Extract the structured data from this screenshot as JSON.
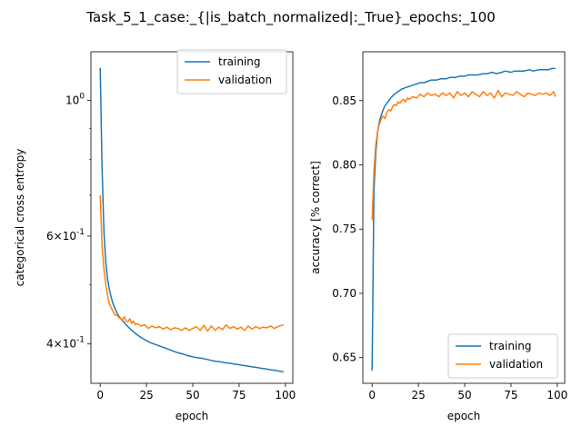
{
  "title": "Task_5_1_case:_{|is_batch_normalized|:_True}_epochs:_100",
  "colors": {
    "training": "#1f77b4",
    "validation": "#ff7f0e"
  },
  "chart_data": [
    {
      "type": "line",
      "xlabel": "epoch",
      "ylabel": "categorical cross entropy",
      "yscale": "log",
      "xlim": [
        -5,
        104
      ],
      "ylim": [
        0.345,
        1.2
      ],
      "x_ticks": [
        0,
        25,
        50,
        75,
        100
      ],
      "x_tick_labels": [
        "0",
        "25",
        "50",
        "75",
        "100"
      ],
      "y_ticks": [
        1.0,
        0.6,
        0.4
      ],
      "y_tick_labels": [
        "10^0",
        "6×10^-1",
        "4×10^-1"
      ],
      "y_minor_ticks": [
        0.5,
        0.7,
        0.8,
        0.9
      ],
      "legend": {
        "position": "upper right",
        "entries": [
          "training",
          "validation"
        ]
      },
      "series": [
        {
          "name": "training",
          "color": "#1f77b4",
          "x": [
            0,
            1,
            2,
            3,
            4,
            5,
            6,
            7,
            8,
            9,
            10,
            12,
            15,
            17,
            20,
            22,
            25,
            27,
            30,
            32,
            35,
            37,
            40,
            42,
            45,
            47,
            50,
            52,
            55,
            57,
            60,
            62,
            65,
            67,
            70,
            72,
            75,
            77,
            80,
            82,
            85,
            87,
            90,
            92,
            95,
            97,
            99
          ],
          "y": [
            1.13,
            0.78,
            0.61,
            0.545,
            0.51,
            0.49,
            0.476,
            0.465,
            0.457,
            0.45,
            0.444,
            0.437,
            0.427,
            0.421,
            0.414,
            0.41,
            0.405,
            0.402,
            0.399,
            0.397,
            0.394,
            0.392,
            0.389,
            0.387,
            0.385,
            0.383,
            0.381,
            0.38,
            0.379,
            0.378,
            0.376,
            0.375,
            0.374,
            0.373,
            0.372,
            0.371,
            0.37,
            0.369,
            0.368,
            0.367,
            0.366,
            0.365,
            0.364,
            0.363,
            0.362,
            0.361,
            0.36
          ]
        },
        {
          "name": "validation",
          "color": "#ff7f0e",
          "x": [
            0,
            1,
            2,
            3,
            4,
            5,
            6,
            7,
            8,
            9,
            10,
            11,
            12,
            13,
            14,
            15,
            16,
            17,
            18,
            19,
            20,
            22,
            24,
            26,
            28,
            30,
            32,
            34,
            36,
            38,
            40,
            42,
            44,
            46,
            48,
            50,
            52,
            54,
            56,
            58,
            60,
            62,
            64,
            66,
            68,
            70,
            72,
            74,
            76,
            78,
            80,
            82,
            84,
            86,
            88,
            90,
            92,
            94,
            96,
            98,
            99
          ],
          "y": [
            0.7,
            0.58,
            0.53,
            0.5,
            0.48,
            0.465,
            0.458,
            0.452,
            0.446,
            0.446,
            0.442,
            0.44,
            0.438,
            0.443,
            0.436,
            0.435,
            0.44,
            0.432,
            0.436,
            0.43,
            0.432,
            0.428,
            0.43,
            0.424,
            0.428,
            0.425,
            0.427,
            0.423,
            0.426,
            0.422,
            0.425,
            0.424,
            0.421,
            0.425,
            0.421,
            0.424,
            0.427,
            0.421,
            0.429,
            0.42,
            0.428,
            0.421,
            0.426,
            0.422,
            0.43,
            0.424,
            0.427,
            0.423,
            0.426,
            0.421,
            0.428,
            0.423,
            0.427,
            0.424,
            0.426,
            0.425,
            0.428,
            0.424,
            0.427,
            0.429,
            0.43
          ]
        }
      ]
    },
    {
      "type": "line",
      "xlabel": "epoch",
      "ylabel": "accuracy [% correct]",
      "yscale": "linear",
      "xlim": [
        -5,
        104
      ],
      "ylim": [
        0.63,
        0.888
      ],
      "x_ticks": [
        0,
        25,
        50,
        75,
        100
      ],
      "x_tick_labels": [
        "0",
        "25",
        "50",
        "75",
        "100"
      ],
      "y_ticks": [
        0.65,
        0.7,
        0.75,
        0.8,
        0.85
      ],
      "y_tick_labels": [
        "0.65",
        "0.70",
        "0.75",
        "0.80",
        "0.85"
      ],
      "legend": {
        "position": "lower right",
        "entries": [
          "training",
          "validation"
        ]
      },
      "series": [
        {
          "name": "training",
          "color": "#1f77b4",
          "x": [
            0,
            1,
            2,
            3,
            4,
            5,
            6,
            7,
            8,
            9,
            10,
            12,
            14,
            16,
            18,
            20,
            22,
            24,
            26,
            28,
            30,
            32,
            35,
            37,
            40,
            42,
            45,
            47,
            50,
            52,
            55,
            57,
            60,
            62,
            65,
            67,
            70,
            72,
            75,
            77,
            80,
            82,
            85,
            87,
            90,
            92,
            95,
            97,
            99
          ],
          "y": [
            0.64,
            0.78,
            0.81,
            0.826,
            0.834,
            0.839,
            0.843,
            0.846,
            0.848,
            0.85,
            0.852,
            0.855,
            0.857,
            0.859,
            0.86,
            0.861,
            0.862,
            0.863,
            0.864,
            0.864,
            0.865,
            0.866,
            0.866,
            0.867,
            0.867,
            0.868,
            0.868,
            0.869,
            0.869,
            0.87,
            0.87,
            0.87,
            0.871,
            0.871,
            0.872,
            0.871,
            0.872,
            0.873,
            0.872,
            0.873,
            0.873,
            0.873,
            0.874,
            0.873,
            0.874,
            0.874,
            0.874,
            0.875,
            0.875
          ]
        },
        {
          "name": "validation",
          "color": "#ff7f0e",
          "x": [
            0,
            1,
            2,
            3,
            4,
            5,
            6,
            7,
            8,
            9,
            10,
            11,
            12,
            13,
            14,
            15,
            16,
            17,
            18,
            19,
            20,
            22,
            24,
            26,
            28,
            30,
            32,
            34,
            36,
            38,
            40,
            42,
            44,
            46,
            48,
            50,
            52,
            54,
            56,
            58,
            60,
            62,
            64,
            66,
            68,
            70,
            72,
            74,
            76,
            78,
            80,
            82,
            84,
            86,
            88,
            90,
            92,
            94,
            96,
            98,
            99
          ],
          "y": [
            0.757,
            0.795,
            0.816,
            0.826,
            0.832,
            0.836,
            0.838,
            0.836,
            0.841,
            0.843,
            0.842,
            0.845,
            0.847,
            0.846,
            0.849,
            0.848,
            0.85,
            0.851,
            0.849,
            0.852,
            0.851,
            0.853,
            0.852,
            0.855,
            0.853,
            0.856,
            0.854,
            0.855,
            0.853,
            0.856,
            0.854,
            0.856,
            0.852,
            0.857,
            0.854,
            0.856,
            0.853,
            0.857,
            0.855,
            0.853,
            0.857,
            0.854,
            0.856,
            0.852,
            0.858,
            0.853,
            0.856,
            0.855,
            0.854,
            0.857,
            0.855,
            0.853,
            0.856,
            0.855,
            0.854,
            0.856,
            0.855,
            0.856,
            0.854,
            0.857,
            0.853
          ]
        }
      ]
    }
  ]
}
